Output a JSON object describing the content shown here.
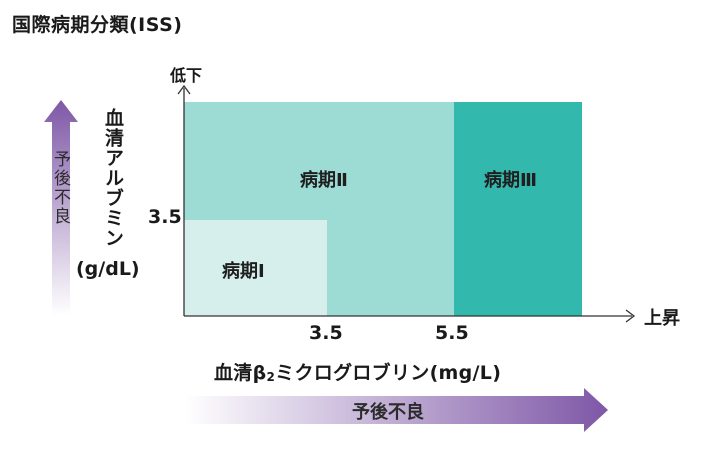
{
  "title": "国際病期分類(ISS)",
  "y_axis": {
    "label": "血清アルブミン",
    "unit": "(g/dL)",
    "top_label": "低下",
    "tick": "3.5"
  },
  "x_axis": {
    "label_pre": "血清β",
    "label_sub": "2",
    "label_post": "ミクログロブリン(mg/L)",
    "right_label": "上昇",
    "ticks": [
      "3.5",
      "5.5"
    ]
  },
  "stages": [
    {
      "label": "病期Ⅰ",
      "color": "#d6efec"
    },
    {
      "label": "病期Ⅱ",
      "color": "#9ddcd5"
    },
    {
      "label": "病期Ⅲ",
      "color": "#33b8ad"
    }
  ],
  "prognosis": {
    "vertical": "予後不良",
    "horizontal": "予後不良",
    "arrow_color": "#7e57a6"
  }
}
